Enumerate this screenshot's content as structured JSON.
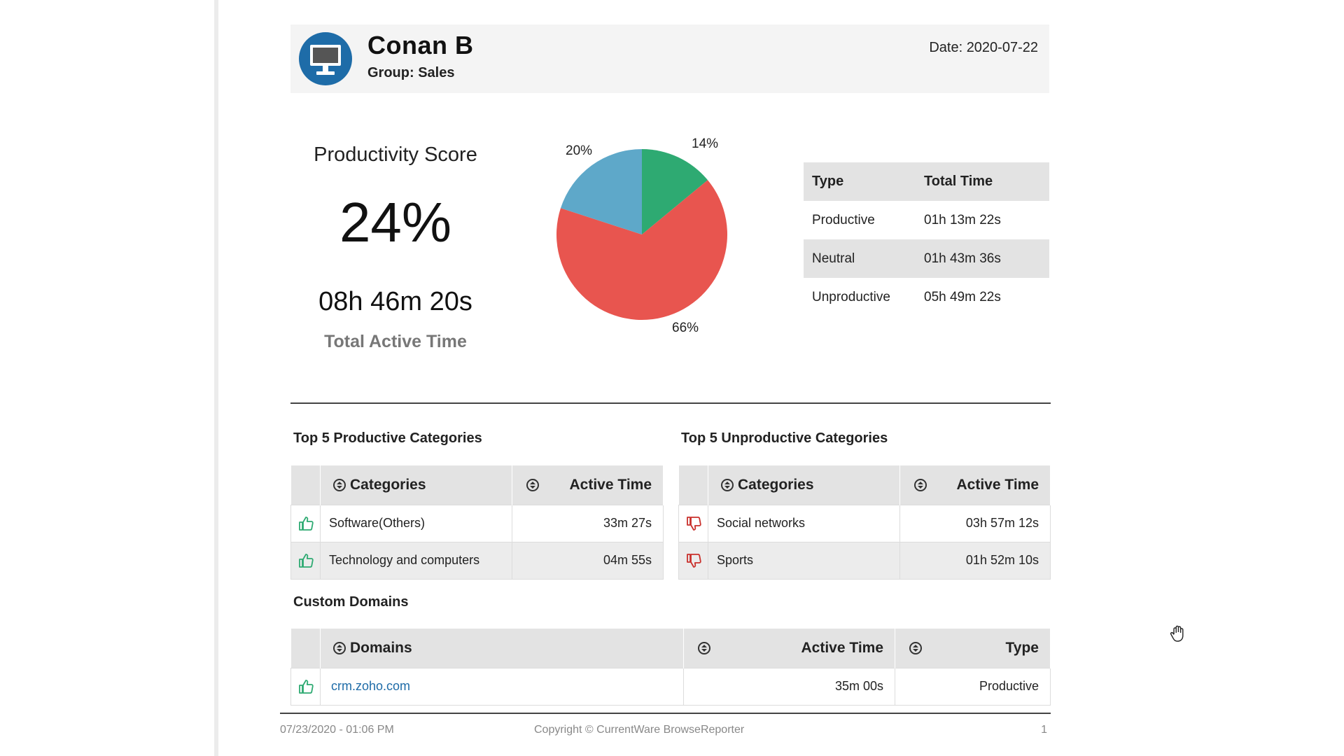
{
  "header": {
    "user_name": "Conan B",
    "group": "Group: Sales",
    "date": "Date: 2020-07-22",
    "avatar_icon": "computer-monitor-icon"
  },
  "score": {
    "title": "Productivity Score",
    "value": "24%",
    "active_total": "08h 46m 20s",
    "active_label": "Total Active Time"
  },
  "chart_data": {
    "type": "pie",
    "categories": [
      "Productive",
      "Unproductive",
      "Neutral"
    ],
    "values": [
      14,
      66,
      20
    ],
    "labels": [
      "14%",
      "66%",
      "20%"
    ],
    "colors": [
      "#2eaa72",
      "#e8554f",
      "#5ea8c9"
    ]
  },
  "summary": {
    "col_type": "Type",
    "col_total": "Total Time",
    "rows": [
      {
        "type": "Productive",
        "time": "01h 13m 22s"
      },
      {
        "type": "Neutral",
        "time": "01h 43m 36s"
      },
      {
        "type": "Unproductive",
        "time": "05h 49m 22s"
      }
    ]
  },
  "productive": {
    "heading": "Top 5 Productive Categories",
    "col_categories": "Categories",
    "col_active": "Active Time",
    "rows": [
      {
        "name": "Software(Others)",
        "time": "33m 27s"
      },
      {
        "name": "Technology and computers",
        "time": "04m 55s"
      }
    ]
  },
  "unproductive": {
    "heading": "Top 5 Unproductive Categories",
    "col_categories": "Categories",
    "col_active": "Active Time",
    "rows": [
      {
        "name": "Social networks",
        "time": "03h 57m 12s"
      },
      {
        "name": "Sports",
        "time": "01h 52m 10s"
      }
    ]
  },
  "domains": {
    "heading": "Custom Domains",
    "col_domains": "Domains",
    "col_active": "Active Time",
    "col_type": "Type",
    "rows": [
      {
        "domain": "crm.zoho.com",
        "time": "35m 00s",
        "type": "Productive"
      }
    ]
  },
  "footer": {
    "timestamp": "07/23/2020 - 01:06 PM",
    "copyright": "Copyright © CurrentWare BrowseReporter",
    "page": "1"
  },
  "colors": {
    "productive_green": "#2eaa72",
    "unproductive_red": "#c9302c",
    "link_blue": "#1f6ca8",
    "header_bg": "#f4f4f4"
  }
}
